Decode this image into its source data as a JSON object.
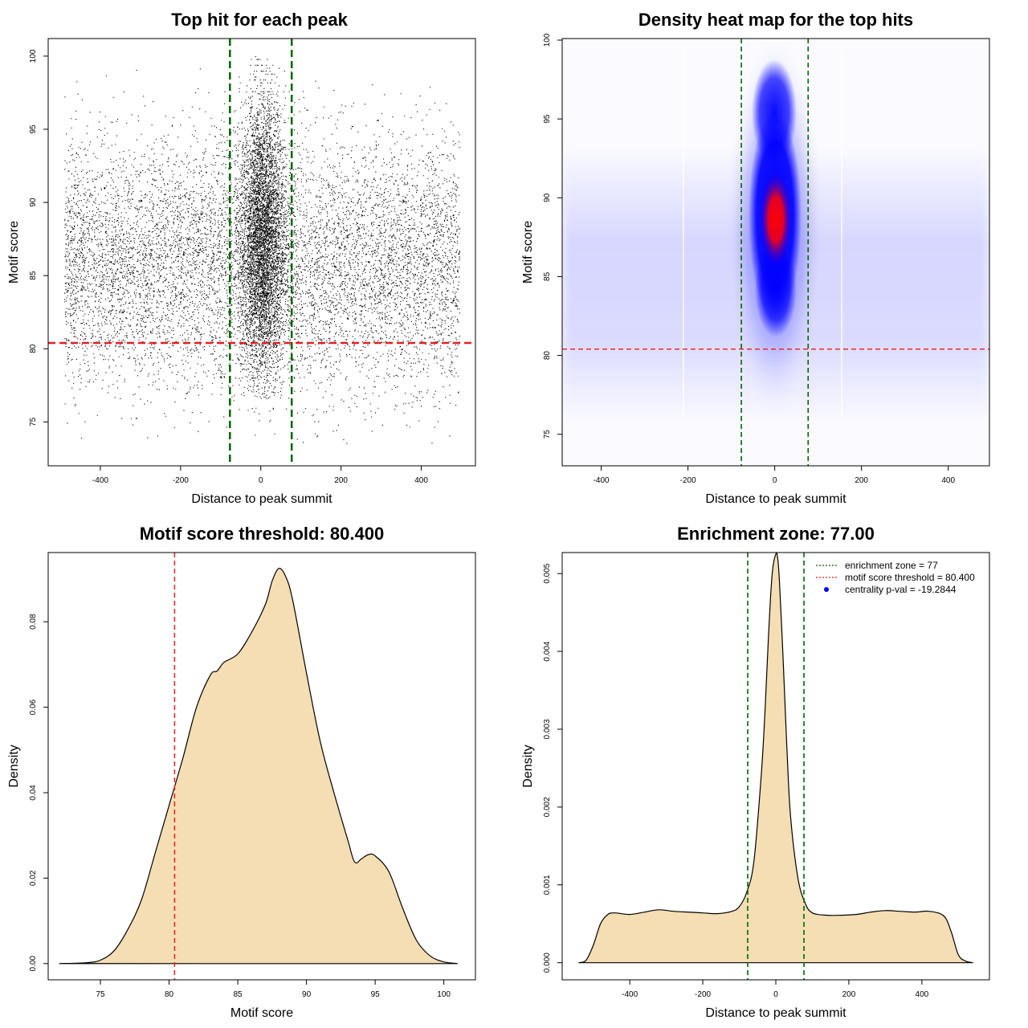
{
  "chart_data": [
    {
      "id": "scatter",
      "type": "scatter",
      "title": "Top hit for each peak",
      "xlabel": "Distance to peak summit",
      "ylabel": "Motif score",
      "xlim": [
        -530,
        535
      ],
      "ylim": [
        72,
        101.2
      ],
      "xticks": [
        -400,
        -200,
        0,
        200,
        400
      ],
      "yticks": [
        75,
        80,
        85,
        90,
        95,
        100
      ],
      "xtick_labels": [
        "-400",
        "-200",
        "0",
        "200",
        "400"
      ],
      "ytick_labels": [
        "75",
        "80",
        "85",
        "90",
        "95",
        "100"
      ],
      "x_range_points": [
        -490,
        495
      ],
      "enrichment_zone": [
        -77,
        77
      ],
      "score_threshold": 80.4,
      "zone_line_color": "#006400",
      "threshold_line_color": "#e02020",
      "point_color": "#000000",
      "grid": false
    },
    {
      "id": "heatmap",
      "type": "heatmap",
      "title": "Density heat map for the top hits",
      "xlabel": "Distance to peak summit",
      "ylabel": "Motif score",
      "xlim": [
        -490,
        495
      ],
      "ylim": [
        73,
        100.1
      ],
      "xticks": [
        -400,
        -200,
        0,
        200,
        400
      ],
      "yticks": [
        75,
        80,
        85,
        90,
        95,
        100
      ],
      "xtick_labels": [
        "-400",
        "-200",
        "0",
        "200",
        "400"
      ],
      "ytick_labels": [
        "75",
        "80",
        "85",
        "90",
        "95",
        "100"
      ],
      "hotspot_center": [
        3,
        88.5
      ],
      "enrichment_zone": [
        -77,
        77
      ],
      "score_threshold": 80.4,
      "colors": {
        "low": "#ffffff",
        "mid": "#0000ff",
        "high": "#ff0000"
      },
      "zone_line_color": "#006400",
      "threshold_line_color": "#e02020",
      "grid": false
    },
    {
      "id": "score_density",
      "type": "area",
      "title": "Motif score threshold: 80.400",
      "xlabel": "Motif score",
      "ylabel": "Density",
      "xlim": [
        71.2,
        102.3
      ],
      "ylim": [
        -0.0038,
        0.0962
      ],
      "xticks": [
        75,
        80,
        85,
        90,
        95,
        100
      ],
      "yticks": [
        0.0,
        0.02,
        0.04,
        0.06,
        0.08
      ],
      "xtick_labels": [
        "75",
        "80",
        "85",
        "90",
        "95",
        "100"
      ],
      "ytick_labels": [
        "0.00",
        "0.02",
        "0.04",
        "0.06",
        "0.08"
      ],
      "x": [
        72,
        74,
        75,
        76,
        77,
        78,
        79,
        80,
        81,
        82,
        83,
        83.5,
        84,
        85,
        86,
        87,
        87.5,
        88,
        88.5,
        89,
        90,
        91,
        92,
        93,
        93.5,
        94,
        94.5,
        95,
        96,
        97,
        98,
        99,
        100,
        101
      ],
      "values": [
        0,
        0.0002,
        0.0008,
        0.003,
        0.008,
        0.015,
        0.026,
        0.037,
        0.048,
        0.06,
        0.0675,
        0.0685,
        0.0705,
        0.0725,
        0.0775,
        0.084,
        0.0895,
        0.0925,
        0.0905,
        0.085,
        0.068,
        0.052,
        0.04,
        0.029,
        0.0238,
        0.0245,
        0.0255,
        0.0252,
        0.0215,
        0.013,
        0.0055,
        0.0018,
        0.0004,
        0
      ],
      "threshold": 80.4,
      "fill_color": "#f5deb3",
      "threshold_line_color": "#e02020",
      "grid": false
    },
    {
      "id": "distance_density",
      "type": "area",
      "title": "Enrichment zone: 77.00",
      "xlabel": "Distance to peak summit",
      "ylabel": "Density",
      "xlim": [
        -585,
        585
      ],
      "ylim": [
        -0.00022,
        0.00527
      ],
      "xticks": [
        -400,
        -200,
        0,
        200,
        400
      ],
      "yticks": [
        0.0,
        0.001,
        0.002,
        0.003,
        0.004,
        0.005
      ],
      "xtick_labels": [
        "-400",
        "-200",
        "0",
        "200",
        "400"
      ],
      "ytick_labels": [
        "0.000",
        "0.001",
        "0.002",
        "0.003",
        "0.004",
        "0.005"
      ],
      "x": [
        -540,
        -520,
        -500,
        -480,
        -460,
        -440,
        -400,
        -360,
        -320,
        -280,
        -240,
        -200,
        -160,
        -120,
        -100,
        -80,
        -60,
        -40,
        -30,
        -20,
        -10,
        0,
        5,
        10,
        20,
        30,
        40,
        60,
        80,
        100,
        140,
        180,
        220,
        260,
        300,
        340,
        380,
        420,
        460,
        480,
        500,
        520,
        540
      ],
      "values": [
        0,
        3e-05,
        0.00022,
        0.0005,
        0.00062,
        0.00064,
        0.00062,
        0.00065,
        0.00068,
        0.00066,
        0.00065,
        0.00064,
        0.00063,
        0.00066,
        0.00072,
        0.0009,
        0.0013,
        0.0024,
        0.0032,
        0.0042,
        0.005,
        0.00525,
        0.0052,
        0.0049,
        0.0039,
        0.0028,
        0.0019,
        0.0011,
        0.00077,
        0.00064,
        0.00061,
        0.00061,
        0.00062,
        0.00065,
        0.00067,
        0.00066,
        0.00065,
        0.00066,
        0.0006,
        0.0004,
        0.0001,
        2e-05,
        0
      ],
      "enrichment_zone": [
        -77,
        77
      ],
      "fill_color": "#f5deb3",
      "zone_line_color": "#006400",
      "legend_position": "top-right",
      "legend": [
        {
          "label": "enrichment zone = 77",
          "style": "dotted-line",
          "color": "#006400"
        },
        {
          "label": "motif score threshold = 80.400",
          "style": "dotted-line",
          "color": "#e02020"
        },
        {
          "label": "centrality p-val = -19.2844",
          "style": "point",
          "color": "#0000ff"
        }
      ],
      "grid": false
    }
  ]
}
